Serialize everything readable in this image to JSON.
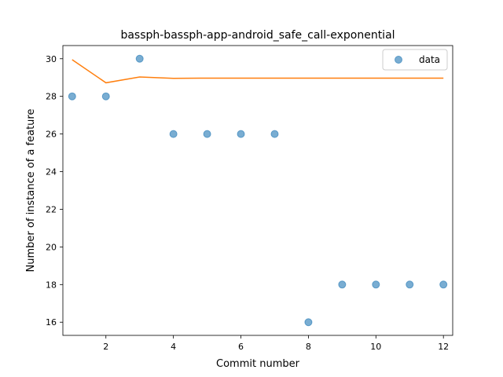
{
  "chart_data": {
    "type": "scatter",
    "title": "bassph-bassph-app-android_safe_call-exponential",
    "xlabel": "Commit number",
    "ylabel": "Number of instance of a feature",
    "xlim": [
      0.725,
      12.275
    ],
    "ylim": [
      15.3,
      30.7
    ],
    "xticks": [
      2,
      4,
      6,
      8,
      10,
      12
    ],
    "yticks": [
      16,
      18,
      20,
      22,
      24,
      26,
      28,
      30
    ],
    "xtick_labels": [
      "2",
      "4",
      "6",
      "8",
      "10",
      "12"
    ],
    "ytick_labels": [
      "16",
      "18",
      "20",
      "22",
      "24",
      "26",
      "28",
      "30"
    ],
    "grid": false,
    "legend_position": "top-right",
    "series": [
      {
        "name": "data",
        "kind": "scatter",
        "color": "#1f77b4",
        "x": [
          1,
          2,
          3,
          4,
          5,
          6,
          7,
          8,
          9,
          10,
          11,
          12
        ],
        "y": [
          28,
          28,
          30,
          26,
          26,
          26,
          26,
          16,
          18,
          18,
          18,
          18
        ]
      },
      {
        "kind": "line",
        "color": "#ff7f0e",
        "x": [
          1,
          2,
          3,
          4,
          5,
          6,
          7,
          8,
          9,
          10,
          11,
          12
        ],
        "y": [
          29.95,
          28.72,
          29.03,
          28.96,
          28.97,
          28.97,
          28.97,
          28.97,
          28.97,
          28.97,
          28.97,
          28.97
        ]
      }
    ]
  }
}
